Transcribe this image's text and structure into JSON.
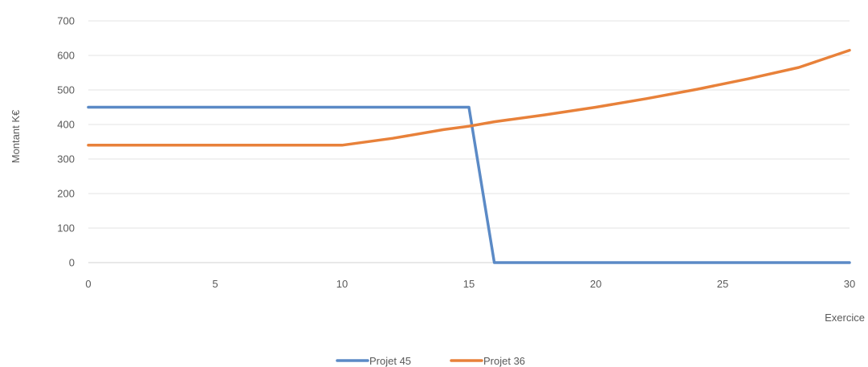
{
  "chart_data": {
    "type": "line",
    "title": "",
    "xlabel": "Exercice",
    "ylabel": "Montant K€",
    "xlim": [
      0,
      30
    ],
    "ylim": [
      0,
      700
    ],
    "x_ticks": [
      0,
      5,
      10,
      15,
      20,
      25,
      30
    ],
    "y_ticks": [
      0,
      100,
      200,
      300,
      400,
      500,
      600,
      700
    ],
    "grid": "horizontal",
    "legend_position": "bottom",
    "series": [
      {
        "name": "Projet 45",
        "color": "#5b8ac6",
        "x": [
          0,
          15,
          16,
          30
        ],
        "y": [
          450,
          450,
          0,
          0
        ]
      },
      {
        "name": "Projet 36",
        "color": "#e8813a",
        "x": [
          0,
          10,
          12,
          14,
          15,
          16,
          18,
          20,
          22,
          24,
          26,
          28,
          30
        ],
        "y": [
          340,
          340,
          360,
          385,
          395,
          408,
          428,
          450,
          475,
          502,
          532,
          565,
          615
        ]
      }
    ]
  }
}
